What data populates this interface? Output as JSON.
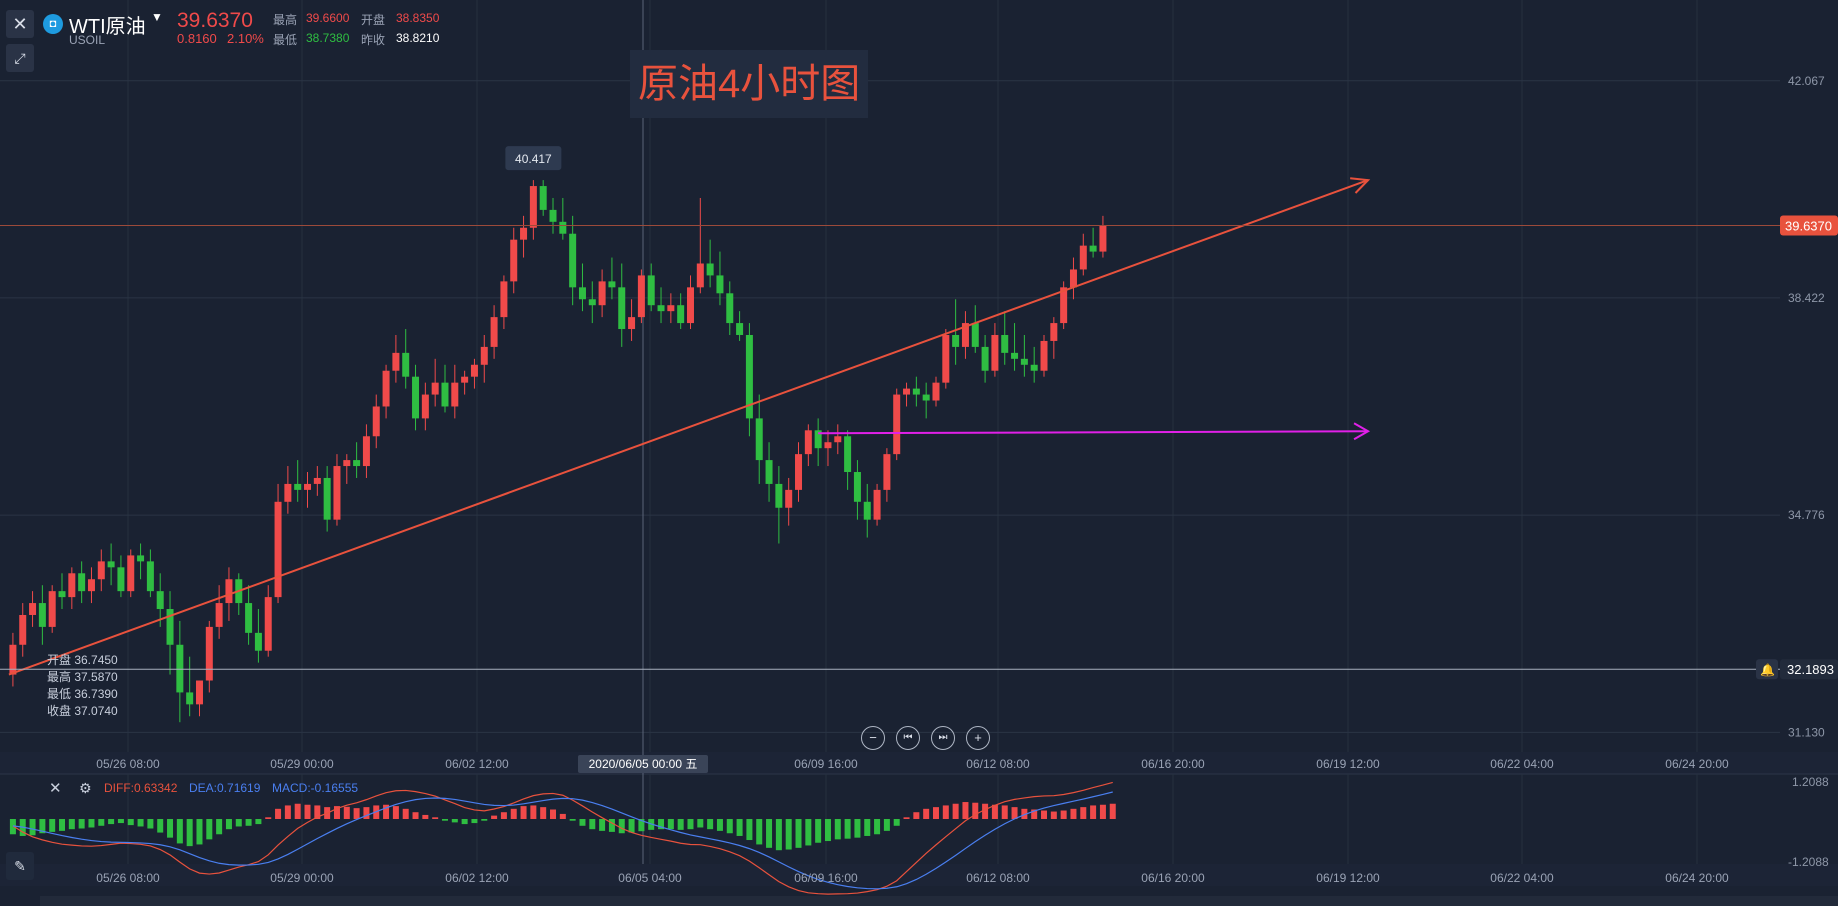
{
  "header": {
    "symbol_icon": "symbol-badge-icon",
    "symbol_name": "WTI原油",
    "symbol_code": "USOIL",
    "price": "39.6370",
    "change": "0.8160",
    "change_pct": "2.10%",
    "high_label": "最高",
    "high_value": "39.6600",
    "open_label": "开盘",
    "open_value": "38.8350",
    "low_label": "最低",
    "low_value": "38.7380",
    "prev_label": "昨收",
    "prev_value": "38.8210"
  },
  "overlay_title": "原油4小时图",
  "ohlc_panel": [
    "开盘 36.7450",
    "最高 37.5870",
    "最低 36.7390",
    "收盘 37.0740"
  ],
  "macd_legend": {
    "diff": "DIFF:0.63342",
    "dea": "DEA:0.71619",
    "macd": "MACD:-0.16555"
  },
  "tools": [
    "close-icon",
    "draw-line-icon"
  ],
  "colors": {
    "up": "#f04a4a",
    "down": "#2fbe42",
    "trend": "#e8523d",
    "horizontal": "#e020e8",
    "diff": "#e8523d",
    "dea": "#4a7ff0",
    "bg": "#1a2232"
  },
  "chart_data": {
    "type": "candlestick",
    "ylim": [
      30.8,
      42.5
    ],
    "price_ticks": [
      42.067,
      38.422,
      34.776,
      31.13
    ],
    "current_price_label": "39.6370",
    "alert_price_label": "32.1893",
    "peak_label": "40.417",
    "time_labels": [
      "05/26 08:00",
      "05/29 00:00",
      "06/02 12:00",
      "06/09 16:00",
      "06/12 08:00",
      "06/16 20:00",
      "06/22 04:00",
      "06/24 20:00"
    ],
    "macd_time_labels": [
      "05/26 08:00",
      "05/29 00:00",
      "06/02 12:00",
      "06/05 04:00",
      "06/09 16:00",
      "06/12 08:00",
      "06/16 20:00",
      "06/19 12:00",
      "06/22 04:00",
      "06/24 20:00"
    ],
    "crosshair_label": "2020/06/05 00:00 五",
    "hover_time_label": "06/19 12:00",
    "macd_ticks": [
      "1.2088",
      "-1.2088"
    ],
    "candles": [
      [
        32.1,
        32.8,
        31.9,
        32.6
      ],
      [
        32.6,
        33.3,
        32.4,
        33.1
      ],
      [
        33.1,
        33.5,
        32.9,
        33.3
      ],
      [
        33.3,
        33.6,
        32.6,
        32.9
      ],
      [
        32.9,
        33.6,
        32.8,
        33.5
      ],
      [
        33.5,
        33.8,
        33.2,
        33.4
      ],
      [
        33.4,
        33.9,
        33.2,
        33.8
      ],
      [
        33.8,
        34.0,
        33.3,
        33.5
      ],
      [
        33.5,
        33.9,
        33.3,
        33.7
      ],
      [
        33.7,
        34.2,
        33.5,
        34.0
      ],
      [
        34.0,
        34.3,
        33.6,
        33.9
      ],
      [
        33.9,
        34.1,
        33.4,
        33.5
      ],
      [
        33.5,
        34.2,
        33.4,
        34.1
      ],
      [
        34.1,
        34.3,
        33.7,
        34.0
      ],
      [
        34.0,
        34.2,
        33.4,
        33.5
      ],
      [
        33.5,
        33.8,
        32.9,
        33.2
      ],
      [
        33.2,
        33.5,
        32.1,
        32.6
      ],
      [
        32.6,
        33.0,
        31.3,
        31.8
      ],
      [
        31.8,
        32.4,
        31.4,
        31.6
      ],
      [
        31.6,
        32.0,
        31.4,
        32.0
      ],
      [
        32.0,
        33.0,
        31.8,
        32.9
      ],
      [
        32.9,
        33.6,
        32.7,
        33.3
      ],
      [
        33.3,
        33.9,
        33.0,
        33.7
      ],
      [
        33.7,
        33.8,
        33.1,
        33.3
      ],
      [
        33.3,
        33.6,
        32.6,
        32.8
      ],
      [
        32.8,
        33.2,
        32.3,
        32.5
      ],
      [
        32.5,
        33.6,
        32.4,
        33.4
      ],
      [
        33.4,
        35.3,
        33.3,
        35.0
      ],
      [
        35.0,
        35.6,
        34.8,
        35.3
      ],
      [
        35.3,
        35.7,
        35.0,
        35.2
      ],
      [
        35.2,
        35.5,
        34.9,
        35.3
      ],
      [
        35.3,
        35.6,
        35.1,
        35.4
      ],
      [
        35.4,
        35.6,
        34.5,
        34.7
      ],
      [
        34.7,
        35.8,
        34.6,
        35.6
      ],
      [
        35.6,
        35.8,
        35.3,
        35.7
      ],
      [
        35.7,
        36.0,
        35.4,
        35.6
      ],
      [
        35.6,
        36.3,
        35.4,
        36.1
      ],
      [
        36.1,
        36.8,
        35.9,
        36.6
      ],
      [
        36.6,
        37.3,
        36.4,
        37.2
      ],
      [
        37.2,
        37.8,
        37.0,
        37.5
      ],
      [
        37.5,
        37.9,
        36.9,
        37.1
      ],
      [
        37.1,
        37.3,
        36.2,
        36.4
      ],
      [
        36.4,
        37.0,
        36.2,
        36.8
      ],
      [
        36.8,
        37.4,
        36.6,
        37.0
      ],
      [
        37.0,
        37.3,
        36.5,
        36.6
      ],
      [
        36.6,
        37.3,
        36.4,
        37.0
      ],
      [
        37.0,
        37.2,
        36.8,
        37.1
      ],
      [
        37.1,
        37.4,
        36.9,
        37.3
      ],
      [
        37.3,
        37.8,
        37.0,
        37.6
      ],
      [
        37.6,
        38.3,
        37.4,
        38.1
      ],
      [
        38.1,
        38.8,
        37.9,
        38.7
      ],
      [
        38.7,
        39.6,
        38.5,
        39.4
      ],
      [
        39.4,
        39.8,
        39.1,
        39.6
      ],
      [
        39.6,
        40.4,
        39.4,
        40.3
      ],
      [
        40.3,
        40.4,
        39.8,
        39.9
      ],
      [
        39.9,
        40.1,
        39.5,
        39.7
      ],
      [
        39.7,
        40.1,
        39.4,
        39.5
      ],
      [
        39.5,
        39.8,
        38.3,
        38.6
      ],
      [
        38.6,
        39.0,
        38.2,
        38.4
      ],
      [
        38.4,
        38.7,
        38.0,
        38.3
      ],
      [
        38.3,
        38.9,
        38.1,
        38.7
      ],
      [
        38.7,
        39.1,
        38.4,
        38.6
      ],
      [
        38.6,
        39.0,
        37.6,
        37.9
      ],
      [
        37.9,
        38.4,
        37.7,
        38.1
      ],
      [
        38.1,
        38.9,
        38.0,
        38.8
      ],
      [
        38.8,
        39.0,
        38.2,
        38.3
      ],
      [
        38.3,
        38.6,
        38.0,
        38.2
      ],
      [
        38.2,
        38.5,
        38.0,
        38.3
      ],
      [
        38.3,
        38.5,
        37.9,
        38.0
      ],
      [
        38.0,
        38.8,
        37.9,
        38.6
      ],
      [
        38.6,
        40.1,
        38.5,
        39.0
      ],
      [
        39.0,
        39.4,
        38.6,
        38.8
      ],
      [
        38.8,
        39.2,
        38.3,
        38.5
      ],
      [
        38.5,
        38.7,
        37.8,
        38.0
      ],
      [
        38.0,
        38.2,
        37.7,
        37.8
      ],
      [
        37.8,
        38.0,
        36.1,
        36.4
      ],
      [
        36.4,
        36.8,
        35.3,
        35.7
      ],
      [
        35.7,
        36.0,
        35.0,
        35.3
      ],
      [
        35.3,
        35.6,
        34.3,
        34.9
      ],
      [
        34.9,
        35.4,
        34.6,
        35.2
      ],
      [
        35.2,
        36.0,
        35.0,
        35.8
      ],
      [
        35.8,
        36.3,
        35.6,
        36.2
      ],
      [
        36.2,
        36.4,
        35.6,
        35.9
      ],
      [
        35.9,
        36.2,
        35.6,
        36.0
      ],
      [
        36.0,
        36.3,
        35.8,
        36.1
      ],
      [
        36.1,
        36.2,
        35.2,
        35.5
      ],
      [
        35.5,
        35.7,
        34.7,
        35.0
      ],
      [
        35.0,
        35.3,
        34.4,
        34.7
      ],
      [
        34.7,
        35.3,
        34.6,
        35.2
      ],
      [
        35.2,
        35.9,
        35.0,
        35.8
      ],
      [
        35.8,
        36.9,
        35.7,
        36.8
      ],
      [
        36.8,
        37.0,
        36.6,
        36.9
      ],
      [
        36.9,
        37.1,
        36.6,
        36.8
      ],
      [
        36.8,
        37.0,
        36.4,
        36.7
      ],
      [
        36.7,
        37.1,
        36.6,
        37.0
      ],
      [
        37.0,
        37.9,
        36.9,
        37.8
      ],
      [
        37.8,
        38.4,
        37.3,
        37.6
      ],
      [
        37.6,
        38.2,
        37.4,
        38.0
      ],
      [
        38.0,
        38.3,
        37.5,
        37.6
      ],
      [
        37.6,
        37.8,
        37.0,
        37.2
      ],
      [
        37.2,
        38.0,
        37.1,
        37.8
      ],
      [
        37.8,
        38.2,
        37.3,
        37.5
      ],
      [
        37.5,
        38.0,
        37.2,
        37.4
      ],
      [
        37.4,
        37.8,
        37.1,
        37.3
      ],
      [
        37.3,
        37.6,
        37.0,
        37.2
      ],
      [
        37.2,
        37.8,
        37.1,
        37.7
      ],
      [
        37.7,
        38.1,
        37.4,
        38.0
      ],
      [
        38.0,
        38.7,
        37.9,
        38.6
      ],
      [
        38.6,
        39.1,
        38.4,
        38.9
      ],
      [
        38.9,
        39.5,
        38.8,
        39.3
      ],
      [
        39.3,
        39.6,
        39.1,
        39.2
      ],
      [
        39.2,
        39.8,
        39.1,
        39.64
      ]
    ],
    "macd_hist": [
      -0.45,
      -0.5,
      -0.48,
      -0.42,
      -0.38,
      -0.35,
      -0.3,
      -0.28,
      -0.25,
      -0.2,
      -0.15,
      -0.12,
      -0.18,
      -0.22,
      -0.28,
      -0.4,
      -0.55,
      -0.72,
      -0.8,
      -0.75,
      -0.6,
      -0.45,
      -0.3,
      -0.22,
      -0.2,
      -0.15,
      0.05,
      0.3,
      0.4,
      0.45,
      0.42,
      0.4,
      0.35,
      0.38,
      0.36,
      0.32,
      0.35,
      0.4,
      0.42,
      0.38,
      0.3,
      0.2,
      0.12,
      0.05,
      -0.05,
      -0.1,
      -0.15,
      -0.12,
      -0.05,
      0.1,
      0.2,
      0.3,
      0.38,
      0.4,
      0.35,
      0.28,
      0.15,
      -0.05,
      -0.2,
      -0.3,
      -0.35,
      -0.38,
      -0.42,
      -0.4,
      -0.36,
      -0.32,
      -0.3,
      -0.3,
      -0.32,
      -0.3,
      -0.25,
      -0.3,
      -0.35,
      -0.42,
      -0.5,
      -0.62,
      -0.75,
      -0.85,
      -0.92,
      -0.9,
      -0.85,
      -0.78,
      -0.7,
      -0.65,
      -0.6,
      -0.58,
      -0.55,
      -0.5,
      -0.45,
      -0.35,
      -0.2,
      0.05,
      0.2,
      0.3,
      0.35,
      0.4,
      0.45,
      0.5,
      0.48,
      0.45,
      0.42,
      0.4,
      0.35,
      0.3,
      0.28,
      0.25,
      0.22,
      0.25,
      0.3,
      0.35,
      0.4,
      0.42,
      0.45
    ],
    "macd_range": [
      -1.2088,
      1.2088
    ],
    "trendline": {
      "from": [
        0,
        32.1
      ],
      "to": [
        138,
        40.4
      ]
    },
    "horizontal_line": {
      "from": [
        82,
        36.15
      ],
      "to": [
        138,
        36.15
      ]
    }
  }
}
